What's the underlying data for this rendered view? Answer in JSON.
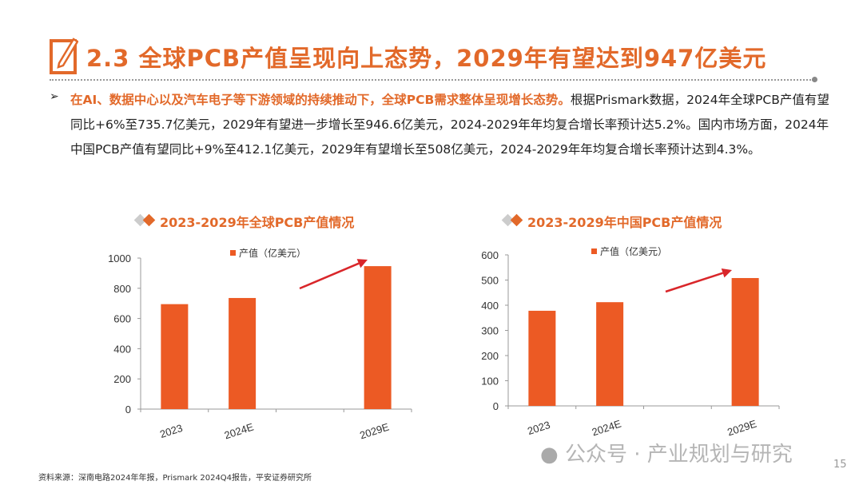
{
  "title": "2.3 全球PCB产值呈现向上态势，2029年有望达到947亿美元",
  "bullet": {
    "highlight": "在AI、数据中心以及汽车电子等下游领域的持续推动下，全球PCB需求整体呈现增长态势。",
    "text": "根据Prismark数据，2024年全球PCB产值有望同比+6%至735.7亿美元，2029年有望进一步增长至946.6亿美元，2024-2029年年均复合增长率预计达5.2%。国内市场方面，2024年中国PCB产值有望同比+9%至412.1亿美元，2029年有望增长至508亿美元，2024-2029年年均复合增长率预计达到4.3%。"
  },
  "colors": {
    "accent": "#e2692a",
    "bar": "#ec5a24",
    "arrow": "#d9262a"
  },
  "chart_data": [
    {
      "type": "bar",
      "title": "2023-2029年全球PCB产值情况",
      "categories": [
        "2023",
        "2024E",
        "",
        "2029E"
      ],
      "series": [
        {
          "name": "产值（亿美元）",
          "values": [
            695,
            735.7,
            null,
            946.6
          ]
        }
      ],
      "ylim": [
        0,
        1000
      ],
      "yticks": [
        0,
        200,
        400,
        600,
        800,
        1000
      ],
      "legend": "top",
      "grid": false,
      "annotation": "upward-arrow"
    },
    {
      "type": "bar",
      "title": "2023-2029年中国PCB产值情况",
      "categories": [
        "2023",
        "2024E",
        "",
        "2029E"
      ],
      "series": [
        {
          "name": "产值（亿美元）",
          "values": [
            378,
            412.1,
            null,
            508
          ]
        }
      ],
      "ylim": [
        0,
        600
      ],
      "yticks": [
        0,
        100,
        200,
        300,
        400,
        500,
        600
      ],
      "legend": "top",
      "grid": false,
      "annotation": "upward-arrow"
    }
  ],
  "footer": {
    "source": "资料来源：深南电路2024年年报，Prismark 2024Q4报告，平安证券研究所",
    "watermark": "公众号 · 产业规划与研究",
    "page_number": "15"
  }
}
